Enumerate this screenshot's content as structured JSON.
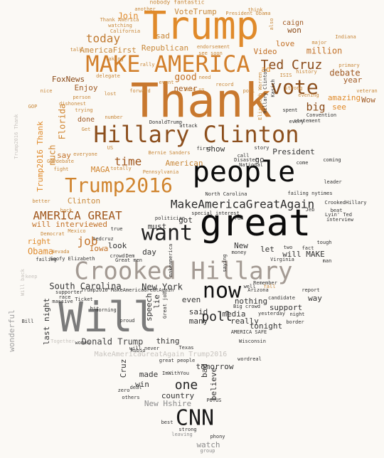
{
  "words": [
    {
      "text": "Thank",
      "color": "#c8782e"
    },
    {
      "text": "Trump",
      "color": "#e08a2a"
    },
    {
      "text": "MAKE AMERICA",
      "color": "#d27f2b"
    },
    {
      "text": "Hillary Clinton",
      "color": "#8c4f1d"
    },
    {
      "text": "people",
      "color": "#0b0b0b"
    },
    {
      "text": "great",
      "color": "#0b0b0b"
    },
    {
      "text": "Trump2016",
      "color": "#d0842e"
    },
    {
      "text": "want",
      "color": "#222222"
    },
    {
      "text": "Crooked Hillary",
      "color": "#a39a93"
    },
    {
      "text": "now",
      "color": "#111111"
    },
    {
      "text": "Will",
      "color": "#7b7b7b"
    },
    {
      "text": "CNN",
      "color": "#1b1b1b"
    },
    {
      "text": "vote",
      "color": "#8c4f1d"
    },
    {
      "text": "Ted Cruz",
      "color": "#8a4a18"
    },
    {
      "text": "MakeAmericaGreatAgain",
      "color": "#2a2a2a"
    },
    {
      "text": "AMERICA GREAT",
      "color": "#a0561c"
    },
    {
      "text": "today",
      "color": "#c07a30"
    },
    {
      "text": "big",
      "color": "#8a4a18"
    },
    {
      "text": "time",
      "color": "#a0561c"
    },
    {
      "text": "job",
      "color": "#c27026"
    },
    {
      "text": "one",
      "color": "#222222"
    },
    {
      "text": "poll",
      "color": "#222222"
    },
    {
      "text": "South Carolina",
      "color": "#333333"
    },
    {
      "text": "New York",
      "color": "#333333"
    },
    {
      "text": "Donald Trump",
      "color": "#444444"
    },
    {
      "text": "show",
      "color": "#333333"
    },
    {
      "text": "President",
      "color": "#333333"
    },
    {
      "text": "American",
      "color": "#c8883a"
    },
    {
      "text": "good",
      "color": "#c27026"
    },
    {
      "text": "never",
      "color": "#a05a24"
    },
    {
      "text": "Enjoy",
      "color": "#a05a24"
    },
    {
      "text": "FoxNews",
      "color": "#8a4a18"
    },
    {
      "text": "Obama",
      "color": "#e08a2a"
    },
    {
      "text": "right",
      "color": "#e08a2a"
    },
    {
      "text": "say",
      "color": "#c27026"
    },
    {
      "text": "Join",
      "color": "#e08a2a"
    },
    {
      "text": "VoteTrump",
      "color": "#c8883a"
    },
    {
      "text": "sad",
      "color": "#c8883a"
    },
    {
      "text": "won",
      "color": "#8a4a18"
    },
    {
      "text": "love",
      "color": "#c27026"
    },
    {
      "text": "million",
      "color": "#c27026"
    },
    {
      "text": "Video",
      "color": "#c27026"
    },
    {
      "text": "Republican",
      "color": "#c8883a"
    },
    {
      "text": "AmericaFirst",
      "color": "#c8883a"
    },
    {
      "text": "debate",
      "color": "#a05a24"
    },
    {
      "text": "year",
      "color": "#a05a24"
    },
    {
      "text": "amazing",
      "color": "#e08a2a"
    },
    {
      "text": "see",
      "color": "#e08a2a"
    },
    {
      "text": "Wow",
      "color": "#a05a24"
    },
    {
      "text": "ad",
      "color": "#e08a2a"
    },
    {
      "text": "much",
      "color": "#d0842e"
    },
    {
      "text": "Florida",
      "color": "#d0842e"
    },
    {
      "text": "Trump2016 Thank",
      "color": "#e08a2a"
    },
    {
      "text": "Clinton",
      "color": "#c8883a"
    },
    {
      "text": "MAGA",
      "color": "#d0842e"
    },
    {
      "text": "will interviewed",
      "color": "#c27026"
    },
    {
      "text": "look",
      "color": "#333333"
    },
    {
      "text": "Iowa",
      "color": "#c27026"
    },
    {
      "text": "day",
      "color": "#333333"
    },
    {
      "text": "got",
      "color": "#333333"
    },
    {
      "text": "must",
      "color": "#333333"
    },
    {
      "text": "let",
      "color": "#333333"
    },
    {
      "text": "New",
      "color": "#333333"
    },
    {
      "text": "will MAKE",
      "color": "#333333"
    },
    {
      "text": "tonight",
      "color": "#333333"
    },
    {
      "text": "support",
      "color": "#333333"
    },
    {
      "text": "way",
      "color": "#333333"
    },
    {
      "text": "nothing",
      "color": "#333333"
    },
    {
      "text": "even",
      "color": "#333333"
    },
    {
      "text": "said",
      "color": "#333333"
    },
    {
      "text": "many",
      "color": "#333333"
    },
    {
      "text": "media",
      "color": "#333333"
    },
    {
      "text": "really",
      "color": "#333333"
    },
    {
      "text": "last night",
      "color": "#333333"
    },
    {
      "text": "thing",
      "color": "#333333"
    },
    {
      "text": "tomorrow",
      "color": "#333333"
    },
    {
      "text": "made",
      "color": "#333333"
    },
    {
      "text": "win",
      "color": "#333333"
    },
    {
      "text": "country",
      "color": "#333333"
    },
    {
      "text": "New Hshire",
      "color": "#8a8a8a"
    },
    {
      "text": "watch",
      "color": "#8a8a8a"
    },
    {
      "text": "believe",
      "color": "#333333"
    },
    {
      "text": "bad",
      "color": "#333333"
    },
    {
      "text": "speech",
      "color": "#333333"
    },
    {
      "text": "lie",
      "color": "#333333"
    },
    {
      "text": "Cruz",
      "color": "#333333"
    },
    {
      "text": "go",
      "color": "#333333"
    },
    {
      "text": "wonderful",
      "color": "#a0a0a0"
    },
    {
      "text": "MakeAmericaGreatAgain Trump2016",
      "color": "#c8c4bf"
    },
    {
      "text": "nobody fantastic",
      "color": "#c8883a"
    },
    {
      "text": "another",
      "color": "#c8883a"
    },
    {
      "text": "Thank America",
      "color": "#c8883a"
    },
    {
      "text": "watching",
      "color": "#c8883a"
    },
    {
      "text": "California",
      "color": "#c8883a"
    },
    {
      "text": "think",
      "color": "#c8883a"
    },
    {
      "text": "President Obama",
      "color": "#c8883a"
    },
    {
      "text": "caign",
      "color": "#a05a24"
    },
    {
      "text": "major",
      "color": "#c8883a"
    },
    {
      "text": "primary",
      "color": "#c8883a"
    },
    {
      "text": "Indiana",
      "color": "#c8883a"
    },
    {
      "text": "endorsement",
      "color": "#c8883a"
    },
    {
      "text": "see soon",
      "color": "#c8883a"
    },
    {
      "text": "history",
      "color": "#c8883a"
    },
    {
      "text": "Convention",
      "color": "#333333"
    },
    {
      "text": "statement",
      "color": "#333333"
    },
    {
      "text": "spent",
      "color": "#333333"
    },
    {
      "text": "every",
      "color": "#333333"
    },
    {
      "text": "evening",
      "color": "#c8883a"
    },
    {
      "text": "veteran",
      "color": "#c8883a"
    },
    {
      "text": "dishonest",
      "color": "#c8883a"
    },
    {
      "text": "number",
      "color": "#c8883a"
    },
    {
      "text": "person",
      "color": "#c8883a"
    },
    {
      "text": "trying",
      "color": "#c8883a"
    },
    {
      "text": "done",
      "color": "#a05a24"
    },
    {
      "text": "nice",
      "color": "#c8883a"
    },
    {
      "text": "GOP",
      "color": "#c8883a"
    },
    {
      "text": "talk",
      "color": "#c8883a"
    },
    {
      "text": "rally",
      "color": "#c8883a"
    },
    {
      "text": "delegate",
      "color": "#c8883a"
    },
    {
      "text": "record",
      "color": "#c8883a"
    },
    {
      "text": "need",
      "color": "#c8883a"
    },
    {
      "text": "everyone",
      "color": "#c8883a"
    },
    {
      "text": "Pennsylvania",
      "color": "#c8883a"
    },
    {
      "text": "Bernie Sanders",
      "color": "#c8883a"
    },
    {
      "text": "totally",
      "color": "#c8883a"
    },
    {
      "text": "GOPdebate",
      "color": "#c8883a"
    },
    {
      "text": "fight",
      "color": "#c8883a"
    },
    {
      "text": "Democrat",
      "color": "#c8883a"
    },
    {
      "text": "better",
      "color": "#c8883a"
    },
    {
      "text": "back",
      "color": "#c8883a"
    },
    {
      "text": "Mexico",
      "color": "#c8883a"
    },
    {
      "text": "Goofy Elizabeth",
      "color": "#333333"
    },
    {
      "text": "failing",
      "color": "#333333"
    },
    {
      "text": "North Carolina",
      "color": "#333333"
    },
    {
      "text": "failing nytimes",
      "color": "#333333"
    },
    {
      "text": "Lyin' Ted",
      "color": "#333333"
    },
    {
      "text": "CrookedHillary",
      "color": "#333333"
    },
    {
      "text": "leader",
      "color": "#333333"
    },
    {
      "text": "beat",
      "color": "#333333"
    },
    {
      "text": "interview",
      "color": "#333333"
    },
    {
      "text": "tough",
      "color": "#333333"
    },
    {
      "text": "fact",
      "color": "#333333"
    },
    {
      "text": "two",
      "color": "#333333"
    },
    {
      "text": "politician",
      "color": "#333333"
    },
    {
      "text": "special interest",
      "color": "#333333"
    },
    {
      "text": "run",
      "color": "#333333"
    },
    {
      "text": "Virginia",
      "color": "#333333"
    },
    {
      "text": "money",
      "color": "#333333"
    },
    {
      "text": "man",
      "color": "#333333"
    },
    {
      "text": "crowd",
      "color": "#333333"
    },
    {
      "text": "Dem",
      "color": "#333333"
    },
    {
      "text": "Great men",
      "color": "#333333"
    },
    {
      "text": "Arizona",
      "color": "#333333"
    },
    {
      "text": "candidate",
      "color": "#333333"
    },
    {
      "text": "report",
      "color": "#333333"
    },
    {
      "text": "yesterday",
      "color": "#333333"
    },
    {
      "text": "night",
      "color": "#333333"
    },
    {
      "text": "border",
      "color": "#333333"
    },
    {
      "text": "AMERICA SAFE",
      "color": "#333333"
    },
    {
      "text": "Big crowd",
      "color": "#333333"
    },
    {
      "text": "Ticket",
      "color": "#333333"
    },
    {
      "text": "massive",
      "color": "#333333"
    },
    {
      "text": "supporter",
      "color": "#333333"
    },
    {
      "text": "race",
      "color": "#333333"
    },
    {
      "text": "morning",
      "color": "#333333"
    },
    {
      "text": "proud",
      "color": "#333333"
    },
    {
      "text": "hit",
      "color": "#333333"
    },
    {
      "text": "women",
      "color": "#333333"
    },
    {
      "text": "Rubio",
      "color": "#333333"
    },
    {
      "text": "will never",
      "color": "#333333"
    },
    {
      "text": "Texas",
      "color": "#333333"
    },
    {
      "text": "Wisconsin",
      "color": "#333333"
    },
    {
      "text": "wordreal",
      "color": "#333333"
    },
    {
      "text": "great people",
      "color": "#333333"
    },
    {
      "text": "ImWithYou",
      "color": "#333333"
    },
    {
      "text": "others",
      "color": "#333333"
    },
    {
      "text": "deal",
      "color": "#333333"
    },
    {
      "text": "zero",
      "color": "#333333"
    },
    {
      "text": "POTUS",
      "color": "#333333"
    },
    {
      "text": "strong",
      "color": "#333333"
    },
    {
      "text": "leaving",
      "color": "#8a8a8a"
    },
    {
      "text": "phony",
      "color": "#333333"
    },
    {
      "text": "best",
      "color": "#333333"
    },
    {
      "text": "group",
      "color": "#8a8a8a"
    },
    {
      "text": "Bill",
      "color": "#333333"
    },
    {
      "text": "Together",
      "color": "#c8c4bf"
    },
    {
      "text": "Trump2016 MakeAmericaGreatAgain",
      "color": "#333333"
    },
    {
      "text": "Trump2016 Thank",
      "color": "#c8c4bf"
    },
    {
      "text": "keep",
      "color": "#c8c4bf"
    },
    {
      "text": "Will back",
      "color": "#c8c4bf"
    },
    {
      "text": "Kasich",
      "color": "#333333"
    },
    {
      "text": "National",
      "color": "#333333"
    },
    {
      "text": "Disaster",
      "color": "#333333"
    },
    {
      "text": "story",
      "color": "#333333"
    },
    {
      "text": "call",
      "color": "#333333"
    },
    {
      "text": "come",
      "color": "#333333"
    },
    {
      "text": "first",
      "color": "#333333"
    },
    {
      "text": "coming",
      "color": "#333333"
    },
    {
      "text": "Remember",
      "color": "#333333"
    },
    {
      "text": "well",
      "color": "#333333"
    },
    {
      "text": "saying",
      "color": "#333333"
    },
    {
      "text": "makeamerica",
      "color": "#333333"
    },
    {
      "text": "tedcruz",
      "color": "#333333"
    },
    {
      "text": "true",
      "color": "#333333"
    },
    {
      "text": "Nevada",
      "color": "#c8883a"
    },
    {
      "text": "fall",
      "color": "#c8883a"
    },
    {
      "text": "Jeb",
      "color": "#333333"
    },
    {
      "text": "also",
      "color": "#c8883a"
    },
    {
      "text": "ISIS",
      "color": "#c8883a"
    },
    {
      "text": "strong",
      "color": "#c8883a"
    },
    {
      "text": "Elizabeth Warren",
      "color": "#c8883a"
    },
    {
      "text": "lost",
      "color": "#c8883a"
    },
    {
      "text": "poll",
      "color": "#c8883a"
    },
    {
      "text": "event",
      "color": "#c8883a"
    },
    {
      "text": "forward",
      "color": "#c8883a"
    },
    {
      "text": "Join us",
      "color": "#c8883a"
    },
    {
      "text": "attack",
      "color": "#333333"
    },
    {
      "text": "DonaldTrump",
      "color": "#333333"
    },
    {
      "text": "Hillary Clinton",
      "color": "#333333"
    },
    {
      "text": "US",
      "color": "#c8883a"
    },
    {
      "text": "Great job",
      "color": "#333333"
    },
    {
      "text": "Get",
      "color": "#c8883a"
    },
    {
      "text": "taking",
      "color": "#c8883a"
    }
  ]
}
